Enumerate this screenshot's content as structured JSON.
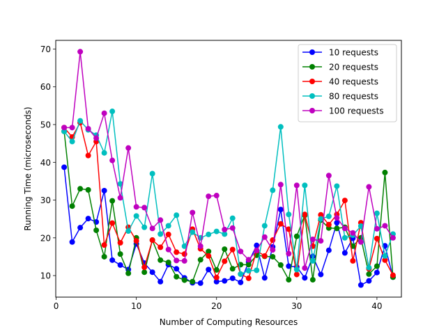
{
  "chart_data": {
    "type": "line",
    "title": "",
    "xlabel": "Number of Computing Resources",
    "ylabel": "Running Time (microseconds)",
    "xlim": [
      -0.05,
      43.05
    ],
    "ylim": [
      4.3,
      72.3
    ],
    "xticks": [
      0,
      10,
      20,
      30,
      40
    ],
    "yticks": [
      10,
      20,
      30,
      40,
      50,
      60,
      70
    ],
    "grid": false,
    "legend_position": "top-right",
    "x": [
      1,
      2,
      3,
      4,
      5,
      6,
      7,
      8,
      9,
      10,
      11,
      12,
      13,
      14,
      15,
      16,
      17,
      18,
      19,
      20,
      21,
      22,
      23,
      24,
      25,
      26,
      27,
      28,
      29,
      30,
      31,
      32,
      33,
      34,
      35,
      36,
      37,
      38,
      39,
      40,
      41,
      42
    ],
    "series": [
      {
        "name": "10 requests",
        "color": "#0000ff",
        "values": [
          38.7,
          18.9,
          22.7,
          25.1,
          24.2,
          32.5,
          14.1,
          12.8,
          11.6,
          18.4,
          13.3,
          10.9,
          8.4,
          12.9,
          11.8,
          9.4,
          8.1,
          8.0,
          11.6,
          8.4,
          8.6,
          9.3,
          8.2,
          13.6,
          18.0,
          9.4,
          17.6,
          27.5,
          12.5,
          12.3,
          9.4,
          15.1,
          10.3,
          16.7,
          24.0,
          16.0,
          19.9,
          7.5,
          8.6,
          10.8,
          17.9,
          9.6
        ]
      },
      {
        "name": "20 requests",
        "color": "#008000",
        "values": [
          48.2,
          28.4,
          33.0,
          32.7,
          22.0,
          15.0,
          29.8,
          15.7,
          10.6,
          20.0,
          10.9,
          19.4,
          14.1,
          13.5,
          9.7,
          8.8,
          8.4,
          14.2,
          16.4,
          11.5,
          17.0,
          11.8,
          12.9,
          12.9,
          15.4,
          15.1,
          15.0,
          12.8,
          8.9,
          20.4,
          26.0,
          8.9,
          24.7,
          22.6,
          22.5,
          22.8,
          17.8,
          20.0,
          10.4,
          12.5,
          37.3,
          9.6
        ]
      },
      {
        "name": "40 requests",
        "color": "#ff0000",
        "values": [
          49.2,
          46.7,
          50.5,
          41.8,
          45.5,
          18.1,
          23.9,
          18.7,
          22.8,
          19.2,
          12.2,
          19.4,
          17.5,
          20.9,
          16.2,
          15.7,
          22.3,
          17.1,
          15.2,
          9.5,
          13.8,
          16.9,
          10.4,
          9.3,
          16.6,
          15.2,
          19.4,
          23.7,
          22.3,
          10.3,
          26.2,
          17.8,
          26.1,
          23.5,
          26.2,
          29.9,
          13.9,
          24.0,
          11.8,
          19.8,
          14.1,
          10.1
        ]
      },
      {
        "name": "80 requests",
        "color": "#00bfbf",
        "values": [
          48.2,
          45.5,
          51.0,
          48.6,
          47.2,
          42.5,
          53.5,
          34.3,
          21.8,
          25.8,
          22.8,
          37.0,
          21.0,
          23.2,
          26.0,
          17.8,
          21.5,
          20.0,
          20.9,
          21.7,
          21.0,
          25.2,
          10.4,
          11.3,
          11.4,
          23.2,
          32.6,
          49.4,
          26.2,
          11.6,
          33.9,
          13.9,
          25.0,
          25.7,
          33.7,
          20.0,
          20.7,
          23.1,
          12.1,
          26.5,
          15.2,
          21.0
        ]
      },
      {
        "name": "100 requests",
        "color": "#bf00bf",
        "values": [
          49.2,
          49.2,
          69.3,
          48.9,
          46.4,
          53.0,
          40.5,
          30.6,
          43.8,
          28.2,
          28.0,
          22.5,
          24.7,
          16.9,
          14.0,
          13.9,
          26.7,
          17.8,
          31.0,
          31.2,
          22.2,
          22.6,
          16.4,
          14.2,
          16.7,
          20.2,
          16.8,
          34.1,
          15.8,
          33.9,
          12.0,
          19.6,
          19.2,
          36.5,
          25.3,
          22.5,
          21.3,
          18.9,
          33.5,
          22.4,
          23.2,
          20.0
        ]
      }
    ]
  }
}
